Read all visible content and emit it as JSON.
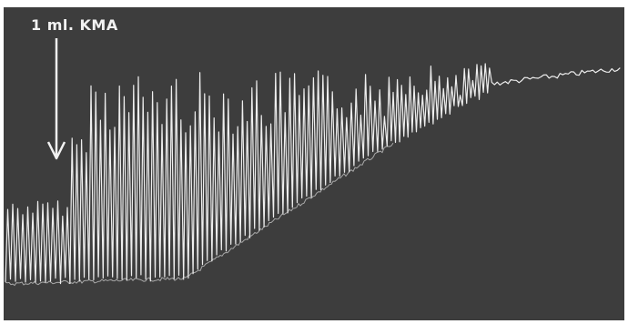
{
  "annotation": {
    "label": "1 ml. KMA",
    "marker": "down-arrow-icon"
  },
  "colors": {
    "background": "#3d3d3d",
    "trace": "#eeeeee",
    "border": "#ffffff"
  }
}
